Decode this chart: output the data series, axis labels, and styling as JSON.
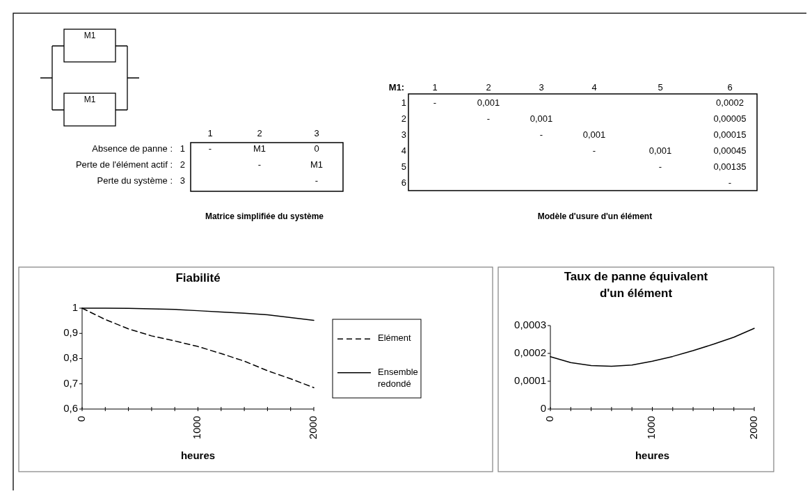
{
  "chart_data": [
    {
      "type": "other",
      "annotations": [
        "M1",
        "M1"
      ]
    },
    {
      "type": "other",
      "title": "Matrice simplifiée du système",
      "categories": [
        "1",
        "2",
        "3"
      ],
      "y_categories": [
        "1",
        "2",
        "3"
      ],
      "y2_categories": [
        "Absence de panne :",
        "Perte de l'élément actif :",
        "Perte du système :"
      ],
      "cell_labels": [
        [
          "-",
          "M1",
          "0"
        ],
        [
          null,
          "-",
          "M1"
        ],
        [
          null,
          null,
          "-"
        ]
      ]
    },
    {
      "type": "heatmap",
      "title": "Modèle d'usure d'un élément",
      "annotations": [
        "M1:"
      ],
      "categories": [
        "1",
        "2",
        "3",
        "4",
        "5",
        "6"
      ],
      "y_categories": [
        "1",
        "2",
        "3",
        "4",
        "5",
        "6"
      ],
      "cells": [
        [
          null,
          null,
          null,
          null,
          null,
          null
        ],
        [
          null,
          null,
          null,
          null,
          null,
          null
        ],
        [
          null,
          null,
          null,
          null,
          null,
          null
        ],
        [
          null,
          null,
          null,
          null,
          null,
          null
        ],
        [
          null,
          null,
          null,
          null,
          null,
          null
        ],
        [
          null,
          null,
          null,
          null,
          null,
          null
        ]
      ],
      "cell_labels": [
        [
          "-",
          "0,001",
          null,
          null,
          null,
          "0,0002"
        ],
        [
          null,
          "-",
          "0,001",
          null,
          null,
          "0,00005"
        ],
        [
          null,
          null,
          "-",
          "0,001",
          null,
          "0,00015"
        ],
        [
          null,
          null,
          null,
          "-",
          "0,001",
          "0,00045"
        ],
        [
          null,
          null,
          null,
          null,
          "-",
          "0,00135"
        ],
        [
          null,
          null,
          null,
          null,
          null,
          "-"
        ]
      ]
    },
    {
      "type": "line",
      "title": "Fiabilité",
      "xlabel": "heures",
      "x": [
        0,
        200,
        400,
        600,
        800,
        1000,
        1200,
        1400,
        1600,
        1800,
        2000
      ],
      "series": [
        {
          "name": "Elément",
          "color": "#000000",
          "line_style": "dashed",
          "values": [
            1,
            0.955,
            0.918,
            0.89,
            0.87,
            0.848,
            0.82,
            0.79,
            0.752,
            0.72,
            0.685
          ]
        },
        {
          "name": "Ensemble redondé",
          "color": "#000000",
          "line_style": "solid",
          "values": [
            1,
            1,
            0.999,
            0.997,
            0.995,
            0.99,
            0.985,
            0.98,
            0.974,
            0.963,
            0.952
          ]
        }
      ],
      "xlim": [
        0,
        2000
      ],
      "xticks": [
        0,
        {
          "value": 200,
          "label": null
        },
        {
          "value": 400,
          "label": null
        },
        {
          "value": 600,
          "label": null
        },
        {
          "value": 800,
          "label": null
        },
        1000,
        {
          "value": 1200,
          "label": null
        },
        {
          "value": 1400,
          "label": null
        },
        {
          "value": 1600,
          "label": null
        },
        {
          "value": 1800,
          "label": null
        },
        2000
      ],
      "ylim": [
        0.6,
        1
      ],
      "yticks": [
        {
          "value": 0.6,
          "label": "0,6"
        },
        {
          "value": 0.7,
          "label": "0,7"
        },
        {
          "value": 0.8,
          "label": "0,8"
        },
        {
          "value": 0.9,
          "label": "0,9"
        },
        1
      ],
      "grid": false,
      "legend": "right",
      "marker": "none"
    },
    {
      "type": "line",
      "title": "Taux de panne équivalent\nd'un élément",
      "xlabel": "heures",
      "x": [
        0,
        200,
        400,
        600,
        800,
        1000,
        1200,
        1400,
        1600,
        1800,
        2000
      ],
      "series": [
        {
          "color": "#000000",
          "line_style": "solid",
          "values": [
            0.000188,
            0.000167,
            0.000156,
            0.000154,
            0.000158,
            0.000172,
            0.000189,
            0.00021,
            0.000233,
            0.000258,
            0.00029
          ]
        }
      ],
      "xlim": [
        0,
        2000
      ],
      "xticks": [
        0,
        {
          "value": 200,
          "label": null
        },
        {
          "value": 400,
          "label": null
        },
        {
          "value": 600,
          "label": null
        },
        {
          "value": 800,
          "label": null
        },
        1000,
        {
          "value": 1200,
          "label": null
        },
        {
          "value": 1400,
          "label": null
        },
        {
          "value": 1600,
          "label": null
        },
        {
          "value": 1800,
          "label": null
        },
        2000
      ],
      "ylim": [
        0,
        0.0003
      ],
      "yticks": [
        0,
        {
          "value": 0.0001,
          "label": "0,0001"
        },
        {
          "value": 0.0002,
          "label": "0,0002"
        },
        {
          "value": 0.0003,
          "label": "0,0003"
        }
      ],
      "grid": false,
      "legend": false,
      "marker": "none"
    }
  ]
}
